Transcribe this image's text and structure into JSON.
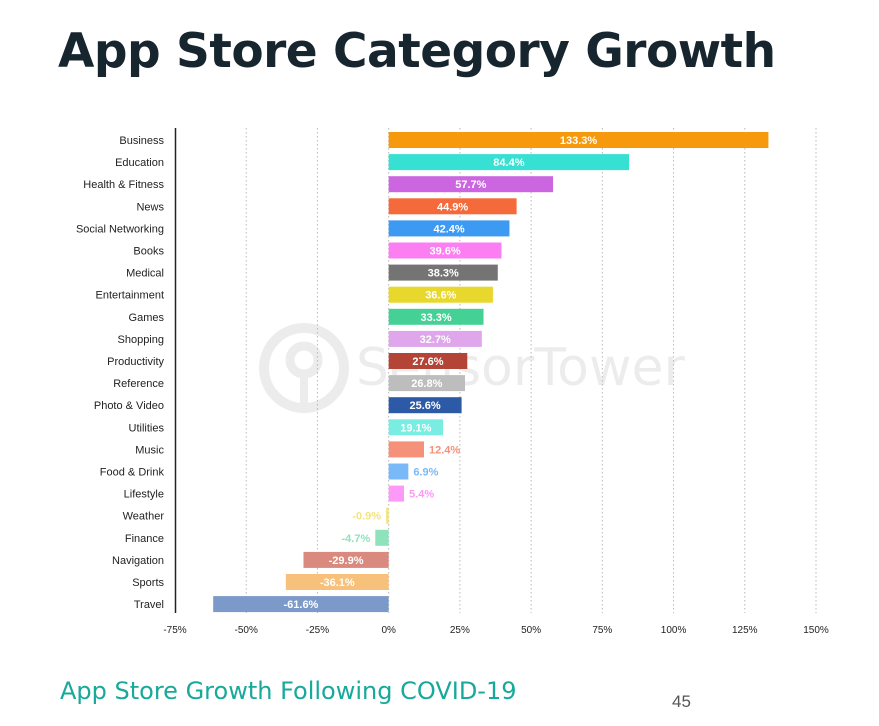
{
  "slide": {
    "title": "App Store Category Growth",
    "subtitle": "App Store Growth Following COVID-19",
    "page_number": "45",
    "watermark": "SensorTower"
  },
  "chart_data": {
    "type": "bar",
    "orientation": "horizontal",
    "title": "App Store Category Growth",
    "xlabel": "",
    "ylabel": "",
    "xlim": [
      -75,
      150
    ],
    "x_ticks": [
      -75,
      -50,
      -25,
      0,
      25,
      50,
      75,
      100,
      125,
      150
    ],
    "x_tick_labels": [
      "-75%",
      "-50%",
      "-25%",
      "0%",
      "25%",
      "50%",
      "75%",
      "100%",
      "125%",
      "150%"
    ],
    "grid": "vertical dotted",
    "categories": [
      "Business",
      "Education",
      "Health & Fitness",
      "News",
      "Social Networking",
      "Books",
      "Medical",
      "Entertainment",
      "Games",
      "Shopping",
      "Productivity",
      "Reference",
      "Photo & Video",
      "Utilities",
      "Music",
      "Food & Drink",
      "Lifestyle",
      "Weather",
      "Finance",
      "Navigation",
      "Sports",
      "Travel"
    ],
    "values": [
      133.3,
      84.4,
      57.7,
      44.9,
      42.4,
      39.6,
      38.3,
      36.6,
      33.3,
      32.7,
      27.6,
      26.8,
      25.6,
      19.1,
      12.4,
      6.9,
      5.4,
      -0.9,
      -4.7,
      -29.9,
      -36.1,
      -61.6
    ],
    "labels": [
      "133.3%",
      "84.4%",
      "57.7%",
      "44.9%",
      "42.4%",
      "39.6%",
      "38.3%",
      "36.6%",
      "33.3%",
      "32.7%",
      "27.6%",
      "26.8%",
      "25.6%",
      "19.1%",
      "12.4%",
      "6.9%",
      "5.4%",
      "-0.9%",
      "-4.7%",
      "-29.9%",
      "-36.1%",
      "-61.6%"
    ],
    "colors": [
      "#f7990c",
      "#36e0d2",
      "#cc66e0",
      "#f56a3b",
      "#3d9af2",
      "#fb7ff2",
      "#747474",
      "#e8d72c",
      "#45d196",
      "#dfa6ec",
      "#b44536",
      "#bdbdbd",
      "#2d5aa6",
      "#79ede2",
      "#f59178",
      "#79b9f7",
      "#fd99f7",
      "#f2e57c",
      "#8ee3bd",
      "#d9897d",
      "#f7c17c",
      "#7b9ac9"
    ]
  }
}
